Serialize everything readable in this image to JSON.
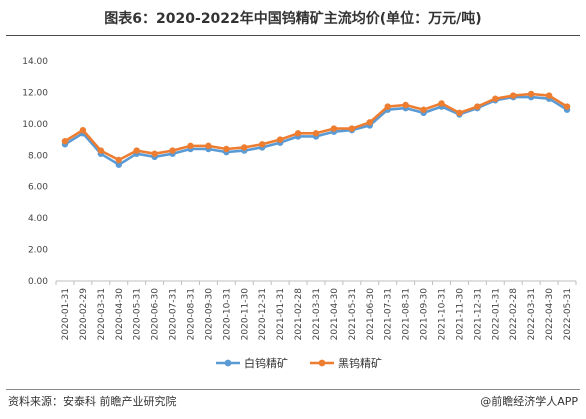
{
  "page": {
    "title": "图表6：2020-2022年中国钨精矿主流均价(单位：万元/吨)",
    "source": "资料来源：安泰科 前瞻产业研究院",
    "brand": "@前瞻经济学人APP"
  },
  "chart_data": {
    "type": "line",
    "title": "图表6：2020-2022年中国钨精矿主流均价(单位：万元/吨)",
    "xlabel": "",
    "ylabel": "",
    "ylim": [
      0,
      14
    ],
    "yticks": [
      "0.00",
      "2.00",
      "4.00",
      "6.00",
      "8.00",
      "10.00",
      "12.00",
      "14.00"
    ],
    "grid": false,
    "legend_position": "bottom",
    "categories": [
      "2020-01-31",
      "2020-02-29",
      "2020-03-31",
      "2020-04-30",
      "2020-05-31",
      "2020-06-30",
      "2020-07-31",
      "2020-08-31",
      "2020-09-30",
      "2020-10-31",
      "2020-11-30",
      "2020-12-31",
      "2021-01-31",
      "2021-02-28",
      "2021-03-31",
      "2021-04-30",
      "2021-05-31",
      "2021-06-30",
      "2021-07-31",
      "2021-08-31",
      "2021-09-30",
      "2021-10-31",
      "2021-11-30",
      "2021-12-31",
      "2022-01-31",
      "2022-02-28",
      "2022-03-31",
      "2022-04-30",
      "2022-05-31"
    ],
    "series": [
      {
        "name": "白钨精矿",
        "color": "#5b9bd5",
        "values": [
          8.7,
          9.4,
          8.1,
          7.4,
          8.1,
          7.9,
          8.1,
          8.4,
          8.4,
          8.2,
          8.3,
          8.5,
          8.8,
          9.2,
          9.2,
          9.5,
          9.6,
          9.9,
          10.9,
          11.0,
          10.7,
          11.1,
          10.6,
          11.0,
          11.5,
          11.7,
          11.7,
          11.6,
          10.9
        ]
      },
      {
        "name": "黑钨精矿",
        "color": "#ed7d31",
        "values": [
          8.9,
          9.6,
          8.3,
          7.7,
          8.3,
          8.1,
          8.3,
          8.6,
          8.6,
          8.4,
          8.5,
          8.7,
          9.0,
          9.4,
          9.4,
          9.7,
          9.7,
          10.1,
          11.1,
          11.2,
          10.9,
          11.3,
          10.7,
          11.1,
          11.6,
          11.8,
          11.9,
          11.8,
          11.1
        ]
      }
    ]
  }
}
